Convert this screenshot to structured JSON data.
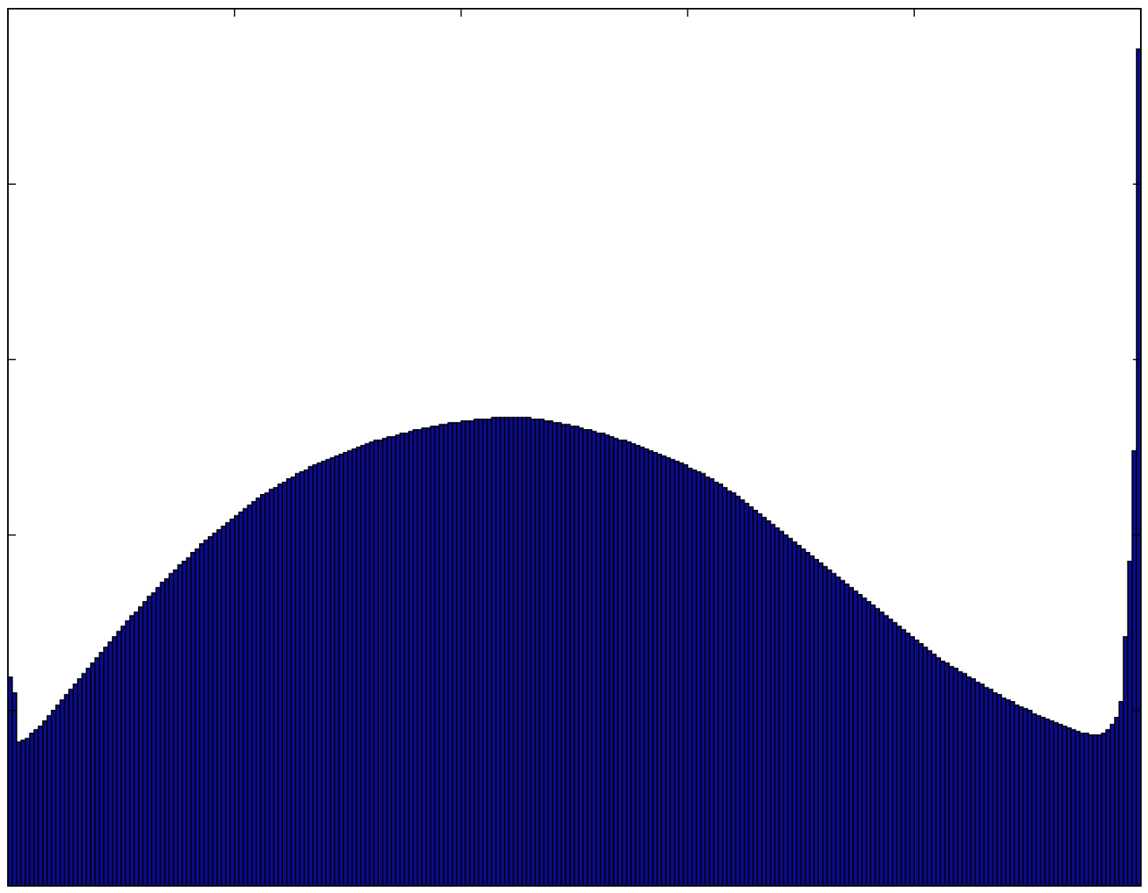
{
  "chart_data": {
    "type": "bar",
    "title": "",
    "xlabel": "",
    "ylabel": "",
    "xlim": [
      0,
      256
    ],
    "ylim": [
      0,
      5
    ],
    "x_ticks": [
      0,
      51.2,
      102.4,
      153.6,
      204.8,
      256
    ],
    "y_ticks": [
      0,
      1,
      2,
      3,
      4,
      5
    ],
    "tick_labels_shown": false,
    "grid": false,
    "legend": "none",
    "bar_color": "#0b0b8c",
    "edge_color": "#000000",
    "values": [
      1.19,
      1.1,
      0.82,
      0.83,
      0.84,
      0.87,
      0.89,
      0.91,
      0.94,
      0.97,
      1.0,
      1.03,
      1.06,
      1.09,
      1.12,
      1.15,
      1.18,
      1.21,
      1.24,
      1.27,
      1.3,
      1.33,
      1.36,
      1.39,
      1.42,
      1.45,
      1.48,
      1.51,
      1.54,
      1.56,
      1.59,
      1.62,
      1.65,
      1.67,
      1.7,
      1.73,
      1.75,
      1.78,
      1.8,
      1.83,
      1.85,
      1.87,
      1.9,
      1.92,
      1.95,
      1.97,
      1.99,
      2.01,
      2.03,
      2.05,
      2.07,
      2.09,
      2.11,
      2.13,
      2.15,
      2.17,
      2.19,
      2.21,
      2.23,
      2.24,
      2.26,
      2.27,
      2.29,
      2.3,
      2.32,
      2.33,
      2.35,
      2.36,
      2.37,
      2.39,
      2.4,
      2.41,
      2.42,
      2.43,
      2.44,
      2.45,
      2.46,
      2.47,
      2.48,
      2.49,
      2.5,
      2.51,
      2.52,
      2.53,
      2.54,
      2.54,
      2.55,
      2.56,
      2.56,
      2.57,
      2.58,
      2.58,
      2.59,
      2.6,
      2.6,
      2.61,
      2.61,
      2.62,
      2.62,
      2.63,
      2.63,
      2.64,
      2.64,
      2.64,
      2.65,
      2.65,
      2.65,
      2.66,
      2.66,
      2.66,
      2.66,
      2.67,
      2.67,
      2.67,
      2.67,
      2.67,
      2.67,
      2.67,
      2.67,
      2.67,
      2.66,
      2.66,
      2.66,
      2.65,
      2.65,
      2.64,
      2.64,
      2.63,
      2.63,
      2.62,
      2.62,
      2.61,
      2.6,
      2.6,
      2.59,
      2.58,
      2.58,
      2.57,
      2.56,
      2.55,
      2.54,
      2.54,
      2.53,
      2.52,
      2.51,
      2.5,
      2.49,
      2.48,
      2.47,
      2.46,
      2.45,
      2.44,
      2.43,
      2.42,
      2.41,
      2.4,
      2.38,
      2.37,
      2.36,
      2.35,
      2.33,
      2.32,
      2.3,
      2.29,
      2.27,
      2.25,
      2.24,
      2.22,
      2.2,
      2.18,
      2.16,
      2.14,
      2.12,
      2.1,
      2.08,
      2.06,
      2.04,
      2.02,
      2.0,
      1.98,
      1.96,
      1.94,
      1.92,
      1.9,
      1.88,
      1.86,
      1.84,
      1.82,
      1.8,
      1.78,
      1.76,
      1.74,
      1.72,
      1.7,
      1.68,
      1.66,
      1.64,
      1.62,
      1.6,
      1.58,
      1.56,
      1.54,
      1.52,
      1.5,
      1.48,
      1.46,
      1.44,
      1.42,
      1.4,
      1.38,
      1.36,
      1.34,
      1.32,
      1.3,
      1.28,
      1.27,
      1.25,
      1.24,
      1.22,
      1.21,
      1.19,
      1.18,
      1.16,
      1.15,
      1.13,
      1.12,
      1.1,
      1.09,
      1.07,
      1.06,
      1.05,
      1.03,
      1.02,
      1.01,
      1.0,
      0.98,
      0.97,
      0.96,
      0.95,
      0.94,
      0.93,
      0.92,
      0.91,
      0.9,
      0.89,
      0.88,
      0.87,
      0.87,
      0.86,
      0.86,
      0.86,
      0.87,
      0.89,
      0.92,
      0.96,
      1.05,
      1.42,
      1.85,
      2.48,
      4.77
    ]
  }
}
